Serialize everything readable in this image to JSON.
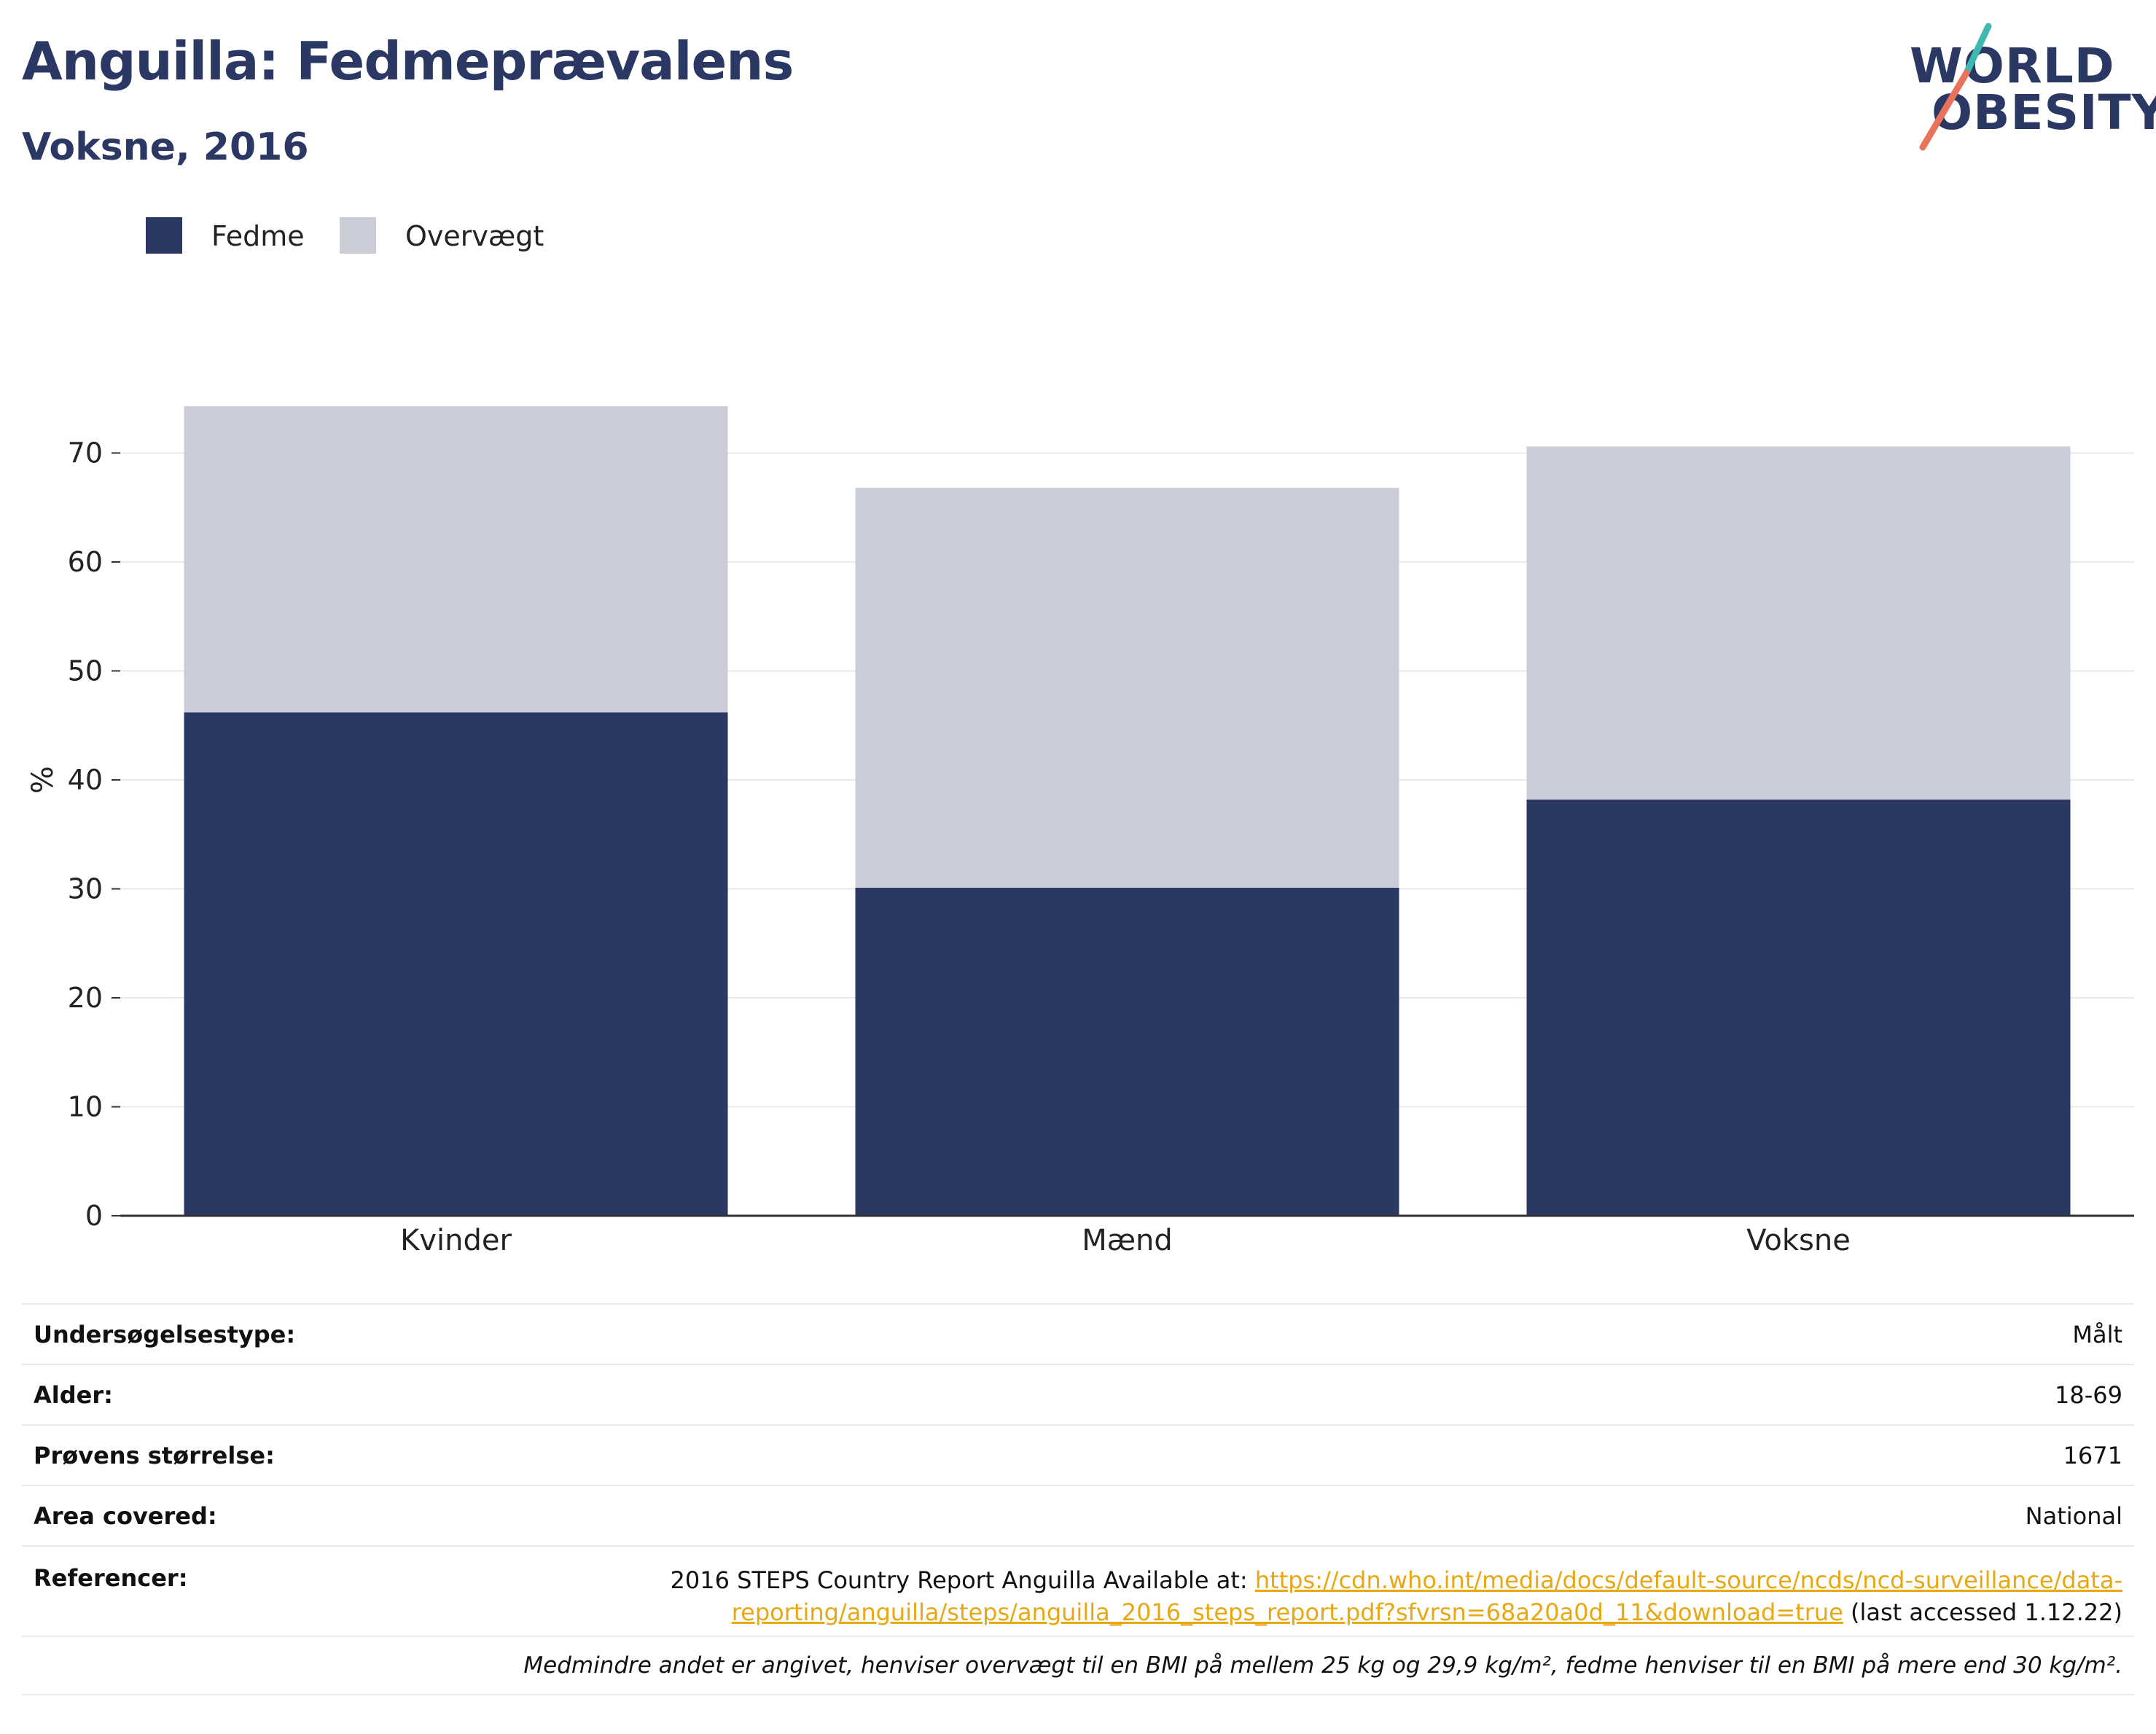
{
  "header": {
    "title": "Anguilla: Fedmeprævalens",
    "subtitle": "Voksne, 2016"
  },
  "logo": {
    "line1": "WORLD",
    "line2": "OBESITY",
    "colors": {
      "text": "#2c3864",
      "slash_top": "#3fb8b2",
      "slash_bottom": "#e8735a"
    }
  },
  "legend": [
    {
      "label": "Fedme",
      "color": "#2c3864"
    },
    {
      "label": "Overvægt",
      "color": "#cacdd8"
    }
  ],
  "chart_data": {
    "type": "bar",
    "stacked": true,
    "categories": [
      "Kvinder",
      "Mænd",
      "Voksne"
    ],
    "series": [
      {
        "name": "Fedme",
        "color": "#2c3864",
        "values": [
          46.2,
          30.1,
          38.2
        ]
      },
      {
        "name": "Overvægt",
        "color": "#cacdd8",
        "values": [
          28.1,
          36.7,
          32.4
        ]
      }
    ],
    "ylabel": "%",
    "ylim": [
      0,
      75
    ],
    "yticks": [
      0,
      10,
      20,
      30,
      40,
      50,
      60,
      70
    ],
    "grid": true,
    "legend_position": "top-left"
  },
  "info": {
    "survey_type": {
      "label": "Undersøgelsestype:",
      "value": "Målt"
    },
    "age": {
      "label": "Alder:",
      "value": "18-69"
    },
    "sample_size": {
      "label": "Prøvens størrelse:",
      "value": "1671"
    },
    "area": {
      "label": "Area covered:",
      "value": "National"
    },
    "references": {
      "label": "Referencer:",
      "prefix": "2016 STEPS Country Report Anguilla Available at: ",
      "link_part1": "https://cdn.who.int/media/docs/default-source/ncds/ncd-surveillance/data-",
      "link_part2": "reporting/anguilla/steps/anguilla_2016_steps_report.pdf?sfvrsn=68a20a0d_11&download=true",
      "suffix": " (last accessed 1.12.22)"
    },
    "footnote": "Medmindre andet er angivet, henviser overvægt til en BMI på mellem 25 kg og 29,9 kg/m², fedme henviser til en BMI på mere end 30 kg/m²."
  }
}
